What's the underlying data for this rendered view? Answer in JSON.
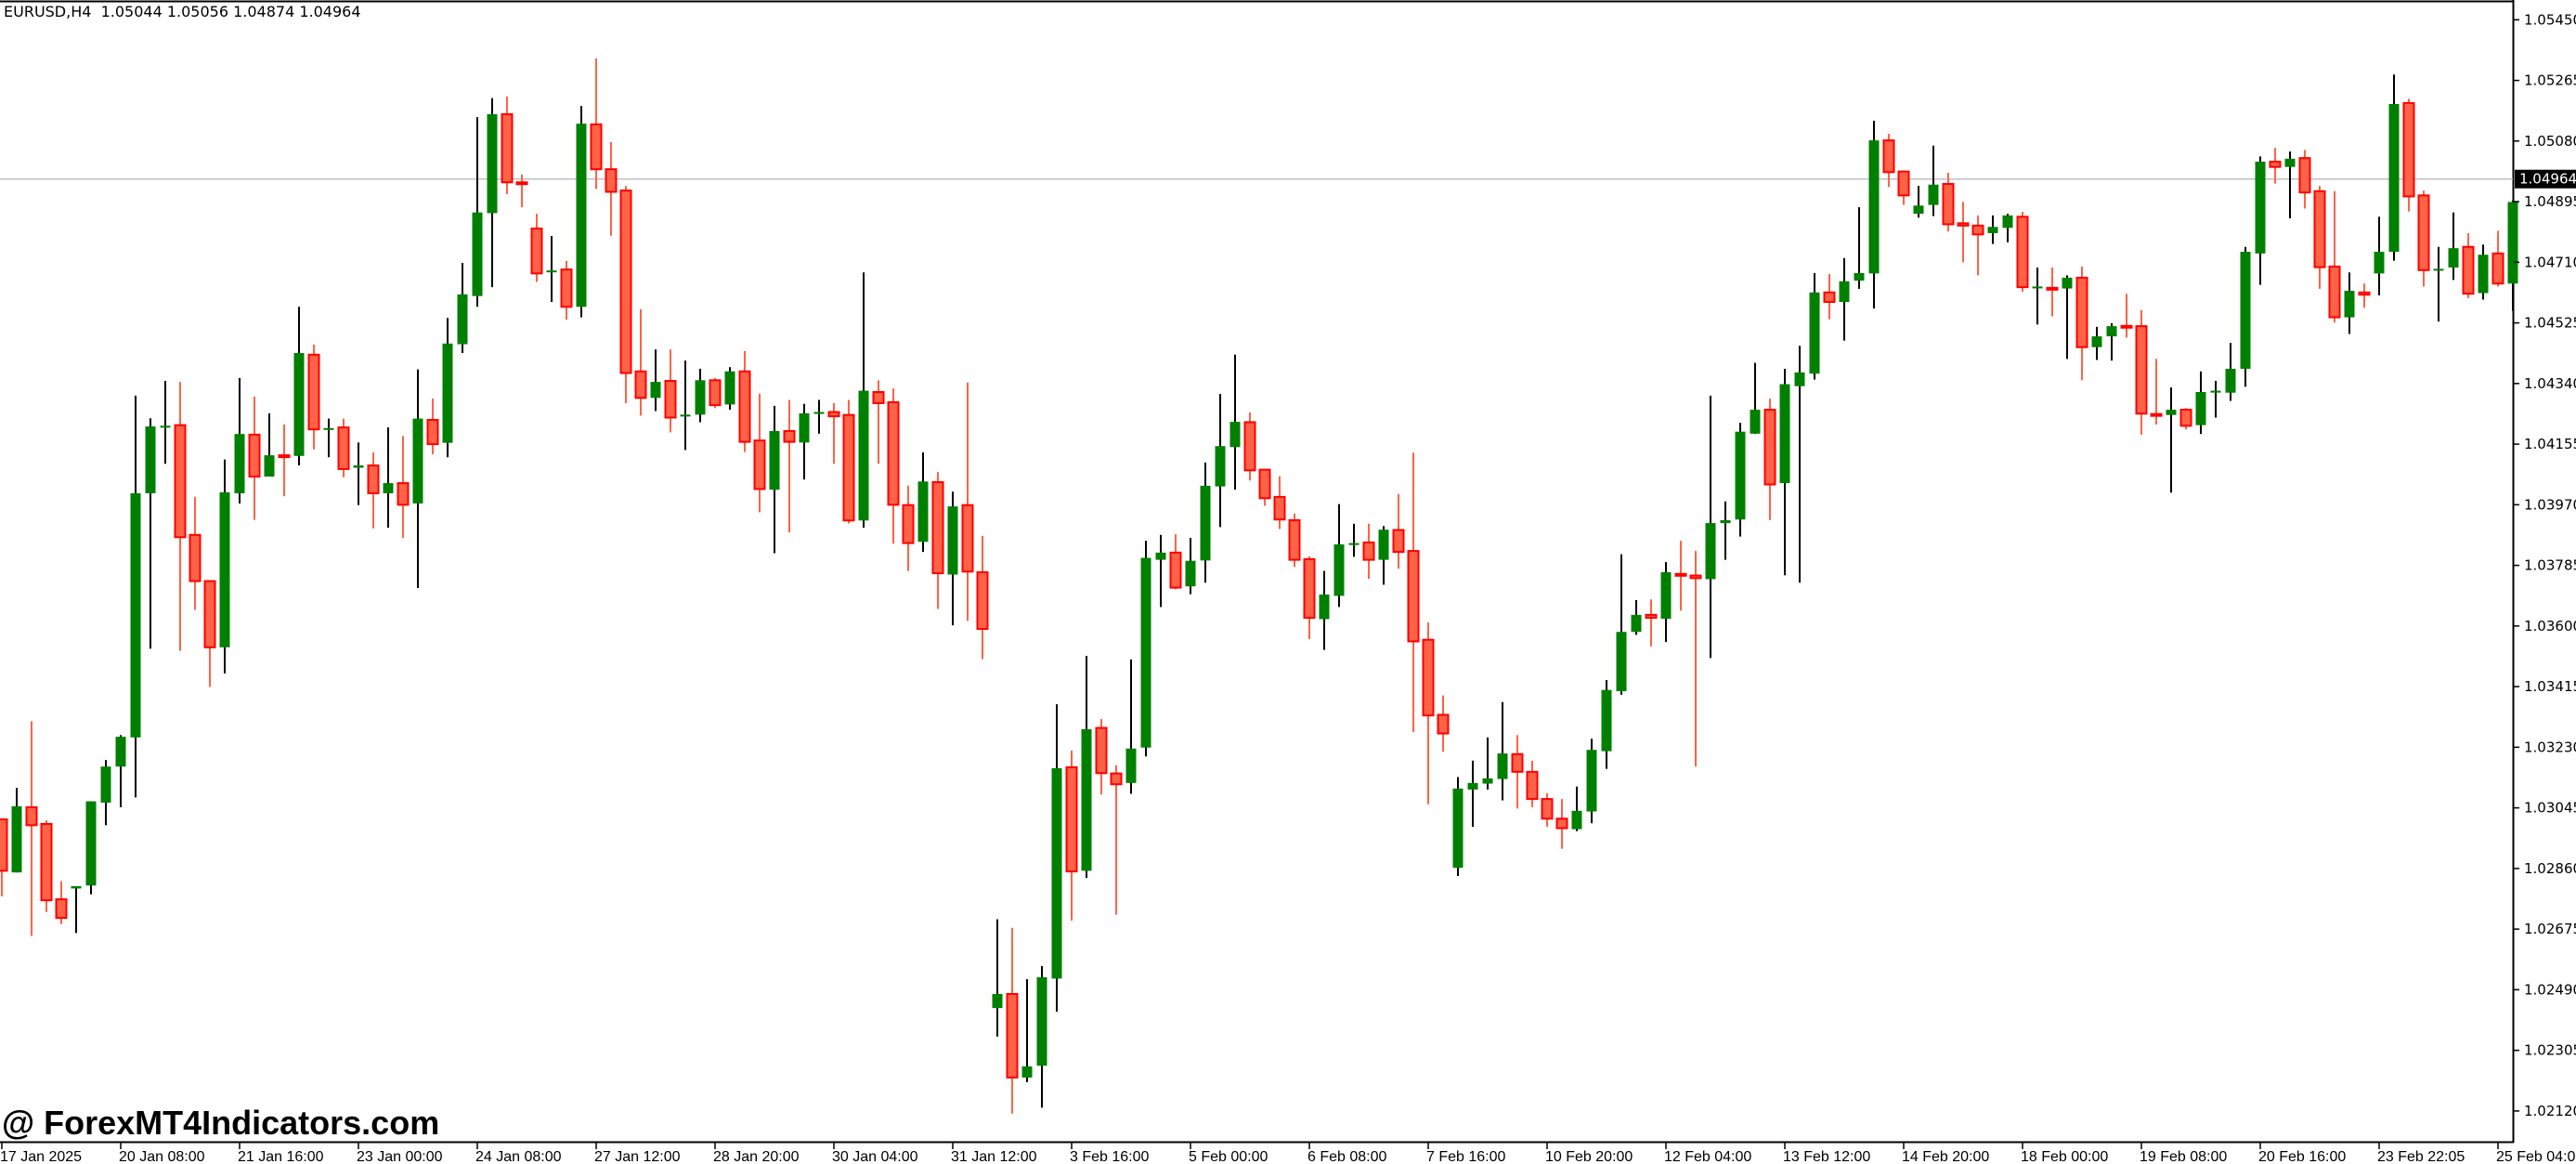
{
  "header": {
    "symbol": "EURUSD,H4",
    "ohlc": "1.05044 1.05056 1.04874 1.04964"
  },
  "watermark": "@ ForexMT4Indicators.com",
  "colors": {
    "bull_body": "#008000",
    "bull_wick": "#000000",
    "bear_body": "#ff6347",
    "bear_border": "#ff0000",
    "bear_wick": "#ff6347",
    "price_line": "#c0c0c0",
    "price_label_bg": "#000000",
    "price_label_text": "#ffffff"
  },
  "chart_data": {
    "type": "candlestick",
    "symbol": "EURUSD",
    "timeframe": "H4",
    "ylim": [
      1.0208,
      1.0546
    ],
    "grid": false,
    "current_price": "1.04964",
    "y_ticks": [
      "1.05450",
      "1.05265",
      "1.05080",
      "1.04895",
      "1.04710",
      "1.04525",
      "1.04340",
      "1.04155",
      "1.03970",
      "1.03785",
      "1.03600",
      "1.03415",
      "1.03230",
      "1.03045",
      "1.02860",
      "1.02675",
      "1.02490",
      "1.02305",
      "1.02120"
    ],
    "x_labels": [
      "17 Jan 2025",
      "20 Jan 08:00",
      "21 Jan 16:00",
      "23 Jan 00:00",
      "24 Jan 08:00",
      "27 Jan 12:00",
      "28 Jan 20:00",
      "30 Jan 04:00",
      "31 Jan 12:00",
      "3 Feb 16:00",
      "5 Feb 00:00",
      "6 Feb 08:00",
      "7 Feb 16:00",
      "10 Feb 20:00",
      "12 Feb 04:00",
      "13 Feb 12:00",
      "14 Feb 20:00",
      "18 Feb 00:00",
      "19 Feb 08:00",
      "20 Feb 16:00",
      "23 Feb 22:05",
      "25 Feb 04:00"
    ],
    "x_label_every_bars": 8,
    "ohlc_fields": [
      "open",
      "high",
      "low",
      "close"
    ],
    "candles": [
      [
        1.0301,
        1.0301,
        1.02775,
        1.02853
      ],
      [
        1.02848,
        1.03106,
        1.02848,
        1.0305
      ],
      [
        1.03047,
        1.03309,
        1.02654,
        1.02992
      ],
      [
        1.02996,
        1.03007,
        1.02727,
        1.02763
      ],
      [
        1.02766,
        1.02821,
        1.0269,
        1.02709
      ],
      [
        1.02799,
        1.02806,
        1.02663,
        1.02806
      ],
      [
        1.02808,
        1.03065,
        1.02781,
        1.03065
      ],
      [
        1.03061,
        1.03191,
        1.02992,
        1.03171
      ],
      [
        1.03171,
        1.03267,
        1.03047,
        1.03262
      ],
      [
        1.0326,
        1.04303,
        1.03077,
        1.04005
      ],
      [
        1.04005,
        1.04234,
        1.03531,
        1.04209
      ],
      [
        1.04207,
        1.04348,
        1.04095,
        1.04211
      ],
      [
        1.04213,
        1.04345,
        1.03524,
        1.03871
      ],
      [
        1.03878,
        1.03994,
        1.03649,
        1.03737
      ],
      [
        1.03737,
        1.03737,
        1.03414,
        1.03535
      ],
      [
        1.03535,
        1.04108,
        1.03455,
        1.04008
      ],
      [
        1.04005,
        1.04357,
        1.03974,
        1.04186
      ],
      [
        1.04184,
        1.043,
        1.03924,
        1.04056
      ],
      [
        1.04056,
        1.04249,
        1.04056,
        1.04121
      ],
      [
        1.04121,
        1.04215,
        1.03996,
        1.04119
      ],
      [
        1.04119,
        1.04574,
        1.0409,
        1.04433
      ],
      [
        1.04428,
        1.04459,
        1.04139,
        1.042
      ],
      [
        1.042,
        1.04233,
        1.04115,
        1.04204
      ],
      [
        1.04206,
        1.04233,
        1.04054,
        1.04079
      ],
      [
        1.04083,
        1.0416,
        1.03969,
        1.0409
      ],
      [
        1.0409,
        1.0413,
        1.03898,
        1.04005
      ],
      [
        1.04005,
        1.04206,
        1.039,
        1.04036
      ],
      [
        1.04036,
        1.0418,
        1.03869,
        1.0397
      ],
      [
        1.03974,
        1.04383,
        1.03716,
        1.04233
      ],
      [
        1.04229,
        1.04294,
        1.04124,
        1.04155
      ],
      [
        1.04159,
        1.0454,
        1.04115,
        1.04462
      ],
      [
        1.0446,
        1.04708,
        1.04433,
        1.04612
      ],
      [
        1.04607,
        1.05153,
        1.04574,
        1.04862
      ],
      [
        1.0486,
        1.05211,
        1.04634,
        1.05162
      ],
      [
        1.05162,
        1.05216,
        1.04918,
        1.04954
      ],
      [
        1.04954,
        1.04978,
        1.04878,
        1.0495
      ],
      [
        1.04813,
        1.04858,
        1.0465,
        1.04676
      ],
      [
        1.04681,
        1.0479,
        1.04589,
        1.04685
      ],
      [
        1.04688,
        1.04714,
        1.04535,
        1.04574
      ],
      [
        1.04574,
        1.05187,
        1.04542,
        1.05133
      ],
      [
        1.05131,
        1.05332,
        1.04934,
        1.04994
      ],
      [
        1.04994,
        1.05077,
        1.04791,
        1.04925
      ],
      [
        1.04929,
        1.04943,
        1.0428,
        1.04372
      ],
      [
        1.04377,
        1.04567,
        1.04242,
        1.04296
      ],
      [
        1.04296,
        1.04444,
        1.04256,
        1.04345
      ],
      [
        1.04348,
        1.04444,
        1.04191,
        1.04236
      ],
      [
        1.04242,
        1.0441,
        1.04137,
        1.04245
      ],
      [
        1.04245,
        1.04385,
        1.04222,
        1.0435
      ],
      [
        1.0435,
        1.04357,
        1.04265,
        1.04274
      ],
      [
        1.04276,
        1.0439,
        1.0426,
        1.04377
      ],
      [
        1.04377,
        1.04439,
        1.04131,
        1.04162
      ],
      [
        1.04166,
        1.04309,
        1.03947,
        1.04018
      ],
      [
        1.04016,
        1.04272,
        1.03822,
        1.04195
      ],
      [
        1.04195,
        1.0429,
        1.03886,
        1.04162
      ],
      [
        1.0416,
        1.04278,
        1.04047,
        1.04249
      ],
      [
        1.04249,
        1.0429,
        1.04187,
        1.04253
      ],
      [
        1.04253,
        1.0428,
        1.04095,
        1.0424
      ],
      [
        1.04244,
        1.0429,
        1.03913,
        1.03922
      ],
      [
        1.03922,
        1.04679,
        1.039,
        1.04318
      ],
      [
        1.04314,
        1.0435,
        1.04095,
        1.0428
      ],
      [
        1.04283,
        1.04325,
        1.03851,
        1.0397
      ],
      [
        1.03969,
        1.04028,
        1.03768,
        1.03853
      ],
      [
        1.03857,
        1.0413,
        1.03826,
        1.04041
      ],
      [
        1.04039,
        1.0407,
        1.03652,
        1.03761
      ],
      [
        1.03757,
        1.0401,
        1.03602,
        1.03965
      ],
      [
        1.03969,
        1.04343,
        1.03616,
        1.03766
      ],
      [
        1.03764,
        1.03875,
        1.03499,
        1.03591
      ],
      [
        1.02434,
        1.02705,
        1.02347,
        1.02477
      ],
      [
        1.02477,
        1.02679,
        1.02112,
        1.02222
      ],
      [
        1.02222,
        1.02522,
        1.02208,
        1.02256
      ],
      [
        1.02258,
        1.02562,
        1.0213,
        1.02528
      ],
      [
        1.02524,
        1.03361,
        1.02423,
        1.03166
      ],
      [
        1.03169,
        1.0322,
        1.02701,
        1.02851
      ],
      [
        1.02853,
        1.03509,
        1.02831,
        1.03285
      ],
      [
        1.03289,
        1.03316,
        1.03086,
        1.03151
      ],
      [
        1.0315,
        1.03175,
        1.02719,
        1.03117
      ],
      [
        1.03121,
        1.03498,
        1.03088,
        1.03226
      ],
      [
        1.03229,
        1.0386,
        1.03202,
        1.03808
      ],
      [
        1.03802,
        1.03878,
        1.03658,
        1.03824
      ],
      [
        1.03824,
        1.0388,
        1.03712,
        1.03717
      ],
      [
        1.03721,
        1.03869,
        1.03697,
        1.03799
      ],
      [
        1.038,
        1.04099,
        1.03732,
        1.04028
      ],
      [
        1.04026,
        1.04308,
        1.03902,
        1.04149
      ],
      [
        1.04146,
        1.04428,
        1.04016,
        1.04223
      ],
      [
        1.04222,
        1.04252,
        1.04044,
        1.04075
      ],
      [
        1.04077,
        1.04077,
        1.03967,
        1.0399
      ],
      [
        1.03994,
        1.04057,
        1.03896,
        1.03925
      ],
      [
        1.03923,
        1.03943,
        1.0378,
        1.03802
      ],
      [
        1.03804,
        1.03813,
        1.0356,
        1.03625
      ],
      [
        1.03621,
        1.03768,
        1.03527,
        1.03696
      ],
      [
        1.03692,
        1.03972,
        1.03658,
        1.03849
      ],
      [
        1.03849,
        1.03912,
        1.03811,
        1.03853
      ],
      [
        1.03855,
        1.03912,
        1.03744,
        1.03802
      ],
      [
        1.03802,
        1.03905,
        1.03726,
        1.03894
      ],
      [
        1.03893,
        1.04003,
        1.03775,
        1.03826
      ],
      [
        1.03829,
        1.04129,
        1.03276,
        1.03553
      ],
      [
        1.03558,
        1.03611,
        1.03056,
        1.03327
      ],
      [
        1.03329,
        1.03388,
        1.03216,
        1.03272
      ],
      [
        1.02862,
        1.03139,
        1.02837,
        1.03104
      ],
      [
        1.03101,
        1.03189,
        1.02987,
        1.03121
      ],
      [
        1.03119,
        1.0326,
        1.03101,
        1.03135
      ],
      [
        1.03133,
        1.03368,
        1.03068,
        1.03211
      ],
      [
        1.03209,
        1.03267,
        1.03043,
        1.03155
      ],
      [
        1.03155,
        1.03189,
        1.03047,
        1.03072
      ],
      [
        1.03072,
        1.0309,
        1.02987,
        1.03012
      ],
      [
        1.03012,
        1.03072,
        1.0292,
        1.02983
      ],
      [
        1.0298,
        1.0311,
        1.02974,
        1.03036
      ],
      [
        1.03034,
        1.03256,
        1.02998,
        1.03222
      ],
      [
        1.03218,
        1.03435,
        1.03164,
        1.03405
      ],
      [
        1.03401,
        1.03819,
        1.0339,
        1.03582
      ],
      [
        1.03582,
        1.03679,
        1.03573,
        1.03634
      ],
      [
        1.03634,
        1.03681,
        1.03538,
        1.03625
      ],
      [
        1.03622,
        1.03795,
        1.03551,
        1.03764
      ],
      [
        1.03759,
        1.0386,
        1.03647,
        1.03755
      ],
      [
        1.03754,
        1.03829,
        1.03171,
        1.03746
      ],
      [
        1.03743,
        1.04303,
        1.03502,
        1.03914
      ],
      [
        1.03914,
        1.0398,
        1.03802,
        1.03923
      ],
      [
        1.03925,
        1.0422,
        1.03873,
        1.04193
      ],
      [
        1.04187,
        1.04403,
        1.04186,
        1.0426
      ],
      [
        1.0426,
        1.04294,
        1.03923,
        1.04032
      ],
      [
        1.04036,
        1.04385,
        1.03755,
        1.04338
      ],
      [
        1.04332,
        1.04455,
        1.03732,
        1.04374
      ],
      [
        1.0437,
        1.04677,
        1.04352,
        1.04618
      ],
      [
        1.04618,
        1.04674,
        1.04536,
        1.04589
      ],
      [
        1.04589,
        1.04723,
        1.04471,
        1.04652
      ],
      [
        1.04654,
        1.04878,
        1.04629,
        1.04677
      ],
      [
        1.04676,
        1.05142,
        1.04569,
        1.05082
      ],
      [
        1.05082,
        1.05102,
        1.0494,
        1.04985
      ],
      [
        1.04987,
        1.04987,
        1.04885,
        1.04914
      ],
      [
        1.04858,
        1.04943,
        1.04846,
        1.04883
      ],
      [
        1.04885,
        1.05066,
        1.04851,
        1.04947
      ],
      [
        1.04949,
        1.04983,
        1.04804,
        1.04826
      ],
      [
        1.04829,
        1.04894,
        1.0471,
        1.04822
      ],
      [
        1.04822,
        1.04853,
        1.0467,
        1.04795
      ],
      [
        1.04799,
        1.04853,
        1.04766,
        1.04818
      ],
      [
        1.04815,
        1.04858,
        1.04771,
        1.04853
      ],
      [
        1.04849,
        1.04864,
        1.0462,
        1.04634
      ],
      [
        1.04632,
        1.04694,
        1.0452,
        1.04636
      ],
      [
        1.04632,
        1.04694,
        1.04545,
        1.0463
      ],
      [
        1.0463,
        1.0467,
        1.04415,
        1.04663
      ],
      [
        1.04663,
        1.04697,
        1.0435,
        1.04451
      ],
      [
        1.04451,
        1.04513,
        1.04412,
        1.04484
      ],
      [
        1.04484,
        1.04524,
        1.0441,
        1.04515
      ],
      [
        1.04516,
        1.04614,
        1.0448,
        1.04515
      ],
      [
        1.04515,
        1.04564,
        1.04184,
        1.04248
      ],
      [
        1.04247,
        1.04415,
        1.04215,
        1.04244
      ],
      [
        1.04244,
        1.04328,
        1.04007,
        1.0426
      ],
      [
        1.0426,
        1.04265,
        1.042,
        1.04211
      ],
      [
        1.04213,
        1.04377,
        1.04186,
        1.04314
      ],
      [
        1.04314,
        1.04348,
        1.04236,
        1.04318
      ],
      [
        1.04312,
        1.04464,
        1.04287,
        1.04385
      ],
      [
        1.04385,
        1.04757,
        1.0433,
        1.04742
      ],
      [
        1.04737,
        1.05033,
        1.04641,
        1.05017
      ],
      [
        1.05017,
        1.05059,
        1.0495,
        1.05001
      ],
      [
        1.05001,
        1.05048,
        1.04844,
        1.05026
      ],
      [
        1.05028,
        1.05053,
        1.04874,
        1.04923
      ],
      [
        1.04927,
        1.04943,
        1.04629,
        1.04695
      ],
      [
        1.04697,
        1.04927,
        1.04526,
        1.04542
      ],
      [
        1.04542,
        1.04679,
        1.04491,
        1.04623
      ],
      [
        1.04618,
        1.04645,
        1.04571,
        1.04611
      ],
      [
        1.04676,
        1.04849,
        1.04609,
        1.04742
      ],
      [
        1.04742,
        1.05283,
        1.04715,
        1.05193
      ],
      [
        1.05196,
        1.05209,
        1.04865,
        1.04911
      ],
      [
        1.04914,
        1.04929,
        1.04636,
        1.04686
      ],
      [
        1.04686,
        1.04757,
        1.04529,
        1.0469
      ],
      [
        1.04694,
        1.04862,
        1.04656,
        1.04753
      ],
      [
        1.04757,
        1.04799,
        1.04601,
        1.04614
      ],
      [
        1.04616,
        1.04764,
        1.04596,
        1.04733
      ],
      [
        1.04737,
        1.04806,
        1.04636,
        1.04645
      ],
      [
        1.04645,
        1.04898,
        1.04562,
        1.04894
      ]
    ]
  }
}
